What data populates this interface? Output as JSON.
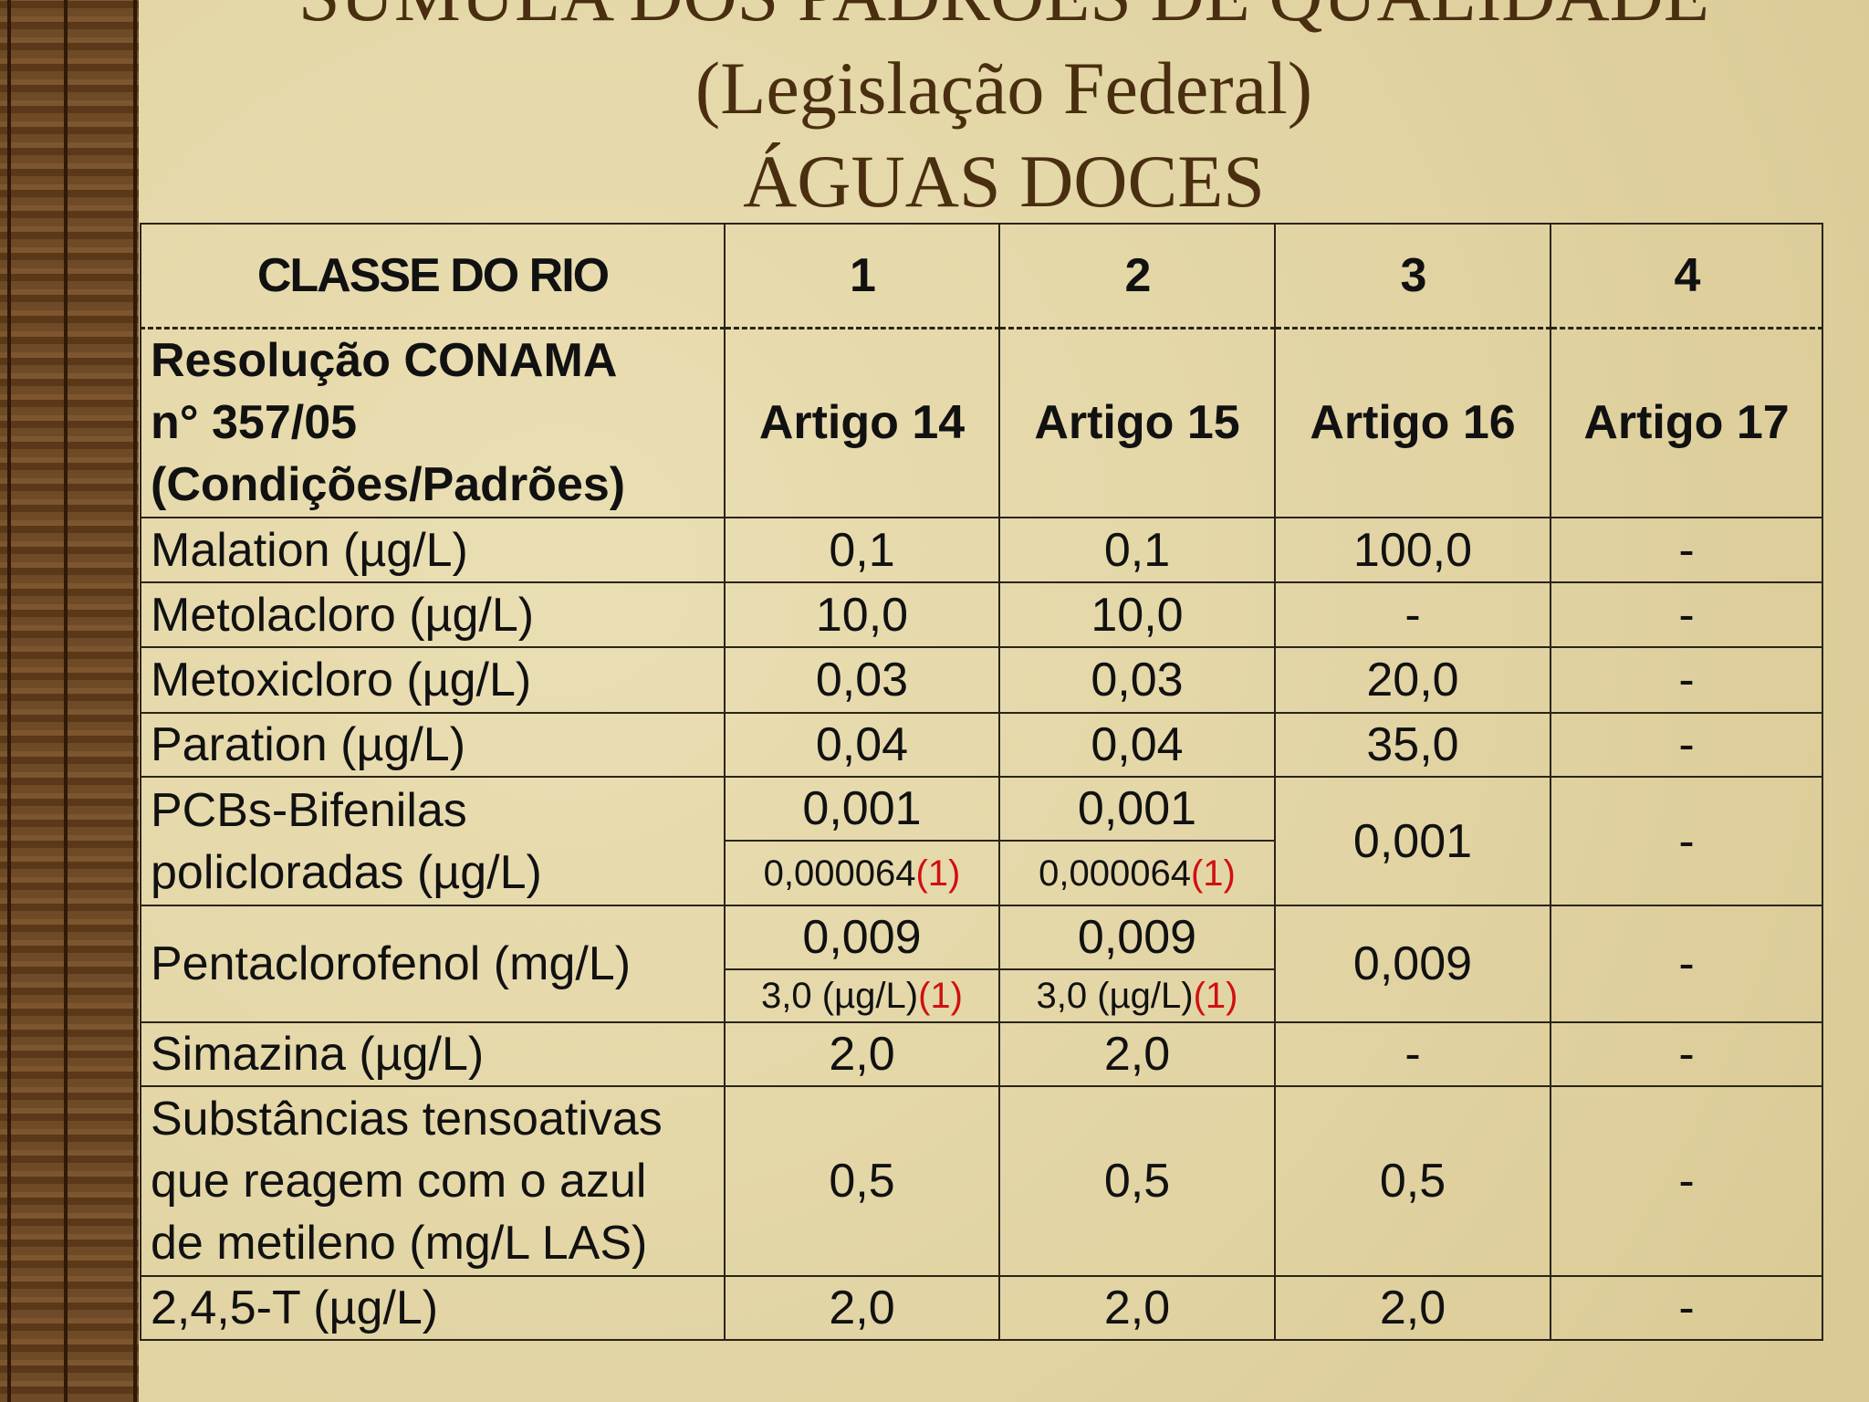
{
  "header": {
    "title_lines": [
      "SÚMULA DOS PADRÕES DE QUALIDADE",
      "(Legislação Federal)",
      "ÁGUAS  DOCES"
    ]
  },
  "table": {
    "header": [
      "CLASSE DO RIO",
      "1",
      "2",
      "3",
      "4"
    ],
    "rows": [
      {
        "label": [
          "Resolução CONAMA",
          "n° 357/05",
          "(Condições/Padrões)"
        ],
        "bold": true,
        "cells": [
          "Artigo 14",
          "Artigo 15",
          "Artigo 16",
          "Artigo 17"
        ]
      },
      {
        "label": [
          "Malation (µg/L)"
        ],
        "cells": [
          "0,1",
          "0,1",
          "100,0",
          "-"
        ]
      },
      {
        "label": [
          "Metolacloro (µg/L)"
        ],
        "cells": [
          "10,0",
          "10,0",
          "-",
          "-"
        ]
      },
      {
        "label": [
          "Metoxicloro (µg/L)"
        ],
        "cells": [
          "0,03",
          "0,03",
          "20,0",
          "-"
        ]
      },
      {
        "label": [
          "Paration (µg/L)"
        ],
        "cells": [
          "0,04",
          "0,04",
          "35,0",
          "-"
        ]
      },
      {
        "label": [
          "PCBs-Bifenilas",
          "policloradas (µg/L)"
        ],
        "cells": [
          {
            "top": "0,001",
            "bottom": "0,000064",
            "note": "(1)"
          },
          {
            "top": "0,001",
            "bottom": "0,000064",
            "note": "(1)"
          },
          "0,001",
          "-"
        ]
      },
      {
        "label": [
          "Pentaclorofenol (mg/L)"
        ],
        "cells": [
          {
            "top": "0,009",
            "bottom": "3,0 (µg/L)",
            "note": "(1)"
          },
          {
            "top": "0,009",
            "bottom": "3,0 (µg/L)",
            "note": "(1)"
          },
          "0,009",
          "-"
        ]
      },
      {
        "label": [
          "Simazina (µg/L)"
        ],
        "cells": [
          "2,0",
          "2,0",
          "-",
          "-"
        ]
      },
      {
        "label": [
          "Substâncias tensoativas",
          "que reagem com o azul",
          "de metileno (mg/L LAS)"
        ],
        "cells": [
          "0,5",
          "0,5",
          "0,5",
          "-"
        ]
      },
      {
        "label": [
          "2,4,5-T (µg/L)"
        ],
        "cells": [
          "2,0",
          "2,0",
          "2,0",
          "-"
        ]
      }
    ]
  }
}
